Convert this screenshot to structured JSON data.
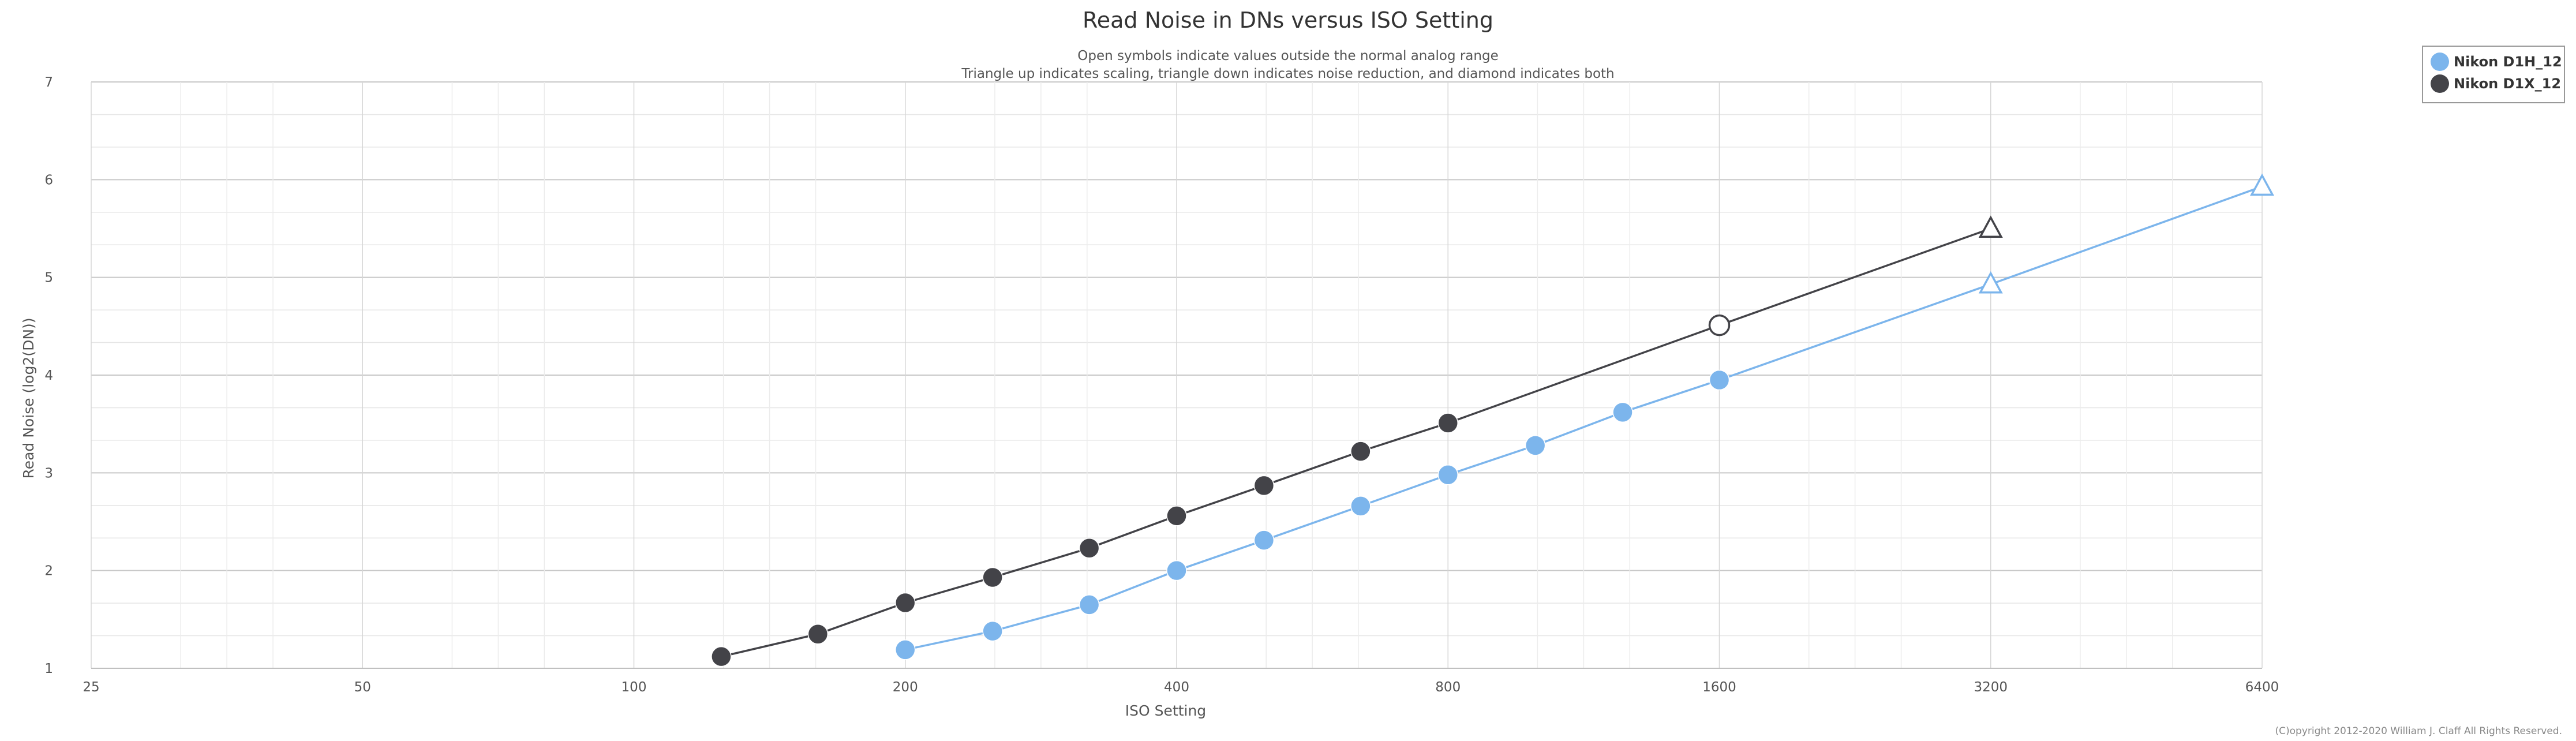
{
  "chart_data": {
    "type": "line",
    "title": "Read Noise in DNs versus ISO Setting",
    "subtitle_lines": [
      "Open symbols indicate values outside the normal analog range",
      "Triangle up indicates scaling, triangle down indicates noise reduction, and diamond indicates both"
    ],
    "xlabel": "ISO Setting",
    "ylabel": "Read Noise (log2(DN))",
    "x_scale": "log2",
    "xlim": [
      25,
      6400
    ],
    "ylim": [
      1,
      7
    ],
    "x_ticks": [
      {
        "value": 25,
        "label": "25"
      },
      {
        "value": 50,
        "label": "50"
      },
      {
        "value": 100,
        "label": "100"
      },
      {
        "value": 200,
        "label": "200"
      },
      {
        "value": 400,
        "label": "400"
      },
      {
        "value": 800,
        "label": "800"
      },
      {
        "value": 1600,
        "label": "1600"
      },
      {
        "value": 3200,
        "label": "3200"
      },
      {
        "value": 6400,
        "label": "6400"
      }
    ],
    "y_ticks": [
      1,
      2,
      3,
      4,
      5,
      6,
      7
    ],
    "grid": true,
    "legend_position": "top-right",
    "series": [
      {
        "name": "Nikon D1H_12",
        "color": "#7cb5ec",
        "points": [
          {
            "x": 200,
            "y": 1.19,
            "marker": "circle",
            "open": false
          },
          {
            "x": 250,
            "y": 1.38,
            "marker": "circle",
            "open": false
          },
          {
            "x": 320,
            "y": 1.65,
            "marker": "circle",
            "open": false
          },
          {
            "x": 400,
            "y": 2.0,
            "marker": "circle",
            "open": false
          },
          {
            "x": 500,
            "y": 2.31,
            "marker": "circle",
            "open": false
          },
          {
            "x": 640,
            "y": 2.66,
            "marker": "circle",
            "open": false
          },
          {
            "x": 800,
            "y": 2.98,
            "marker": "circle",
            "open": false
          },
          {
            "x": 1000,
            "y": 3.28,
            "marker": "circle",
            "open": false
          },
          {
            "x": 1250,
            "y": 3.62,
            "marker": "circle",
            "open": false
          },
          {
            "x": 1600,
            "y": 3.95,
            "marker": "circle",
            "open": false
          },
          {
            "x": 3200,
            "y": 4.93,
            "marker": "triangle-up",
            "open": true
          },
          {
            "x": 6400,
            "y": 5.93,
            "marker": "triangle-up",
            "open": true
          }
        ]
      },
      {
        "name": "Nikon D1X_12",
        "color": "#434348",
        "points": [
          {
            "x": 125,
            "y": 1.12,
            "marker": "circle",
            "open": false
          },
          {
            "x": 160,
            "y": 1.35,
            "marker": "circle",
            "open": false
          },
          {
            "x": 200,
            "y": 1.67,
            "marker": "circle",
            "open": false
          },
          {
            "x": 250,
            "y": 1.93,
            "marker": "circle",
            "open": false
          },
          {
            "x": 320,
            "y": 2.23,
            "marker": "circle",
            "open": false
          },
          {
            "x": 400,
            "y": 2.56,
            "marker": "circle",
            "open": false
          },
          {
            "x": 500,
            "y": 2.87,
            "marker": "circle",
            "open": false
          },
          {
            "x": 640,
            "y": 3.22,
            "marker": "circle",
            "open": false
          },
          {
            "x": 800,
            "y": 3.51,
            "marker": "circle",
            "open": false
          },
          {
            "x": 1600,
            "y": 4.51,
            "marker": "circle",
            "open": true
          },
          {
            "x": 3200,
            "y": 5.5,
            "marker": "triangle-up",
            "open": true
          }
        ]
      }
    ]
  },
  "copyright": "(C)opyright 2012-2020 William J. Claff All Rights Reserved."
}
